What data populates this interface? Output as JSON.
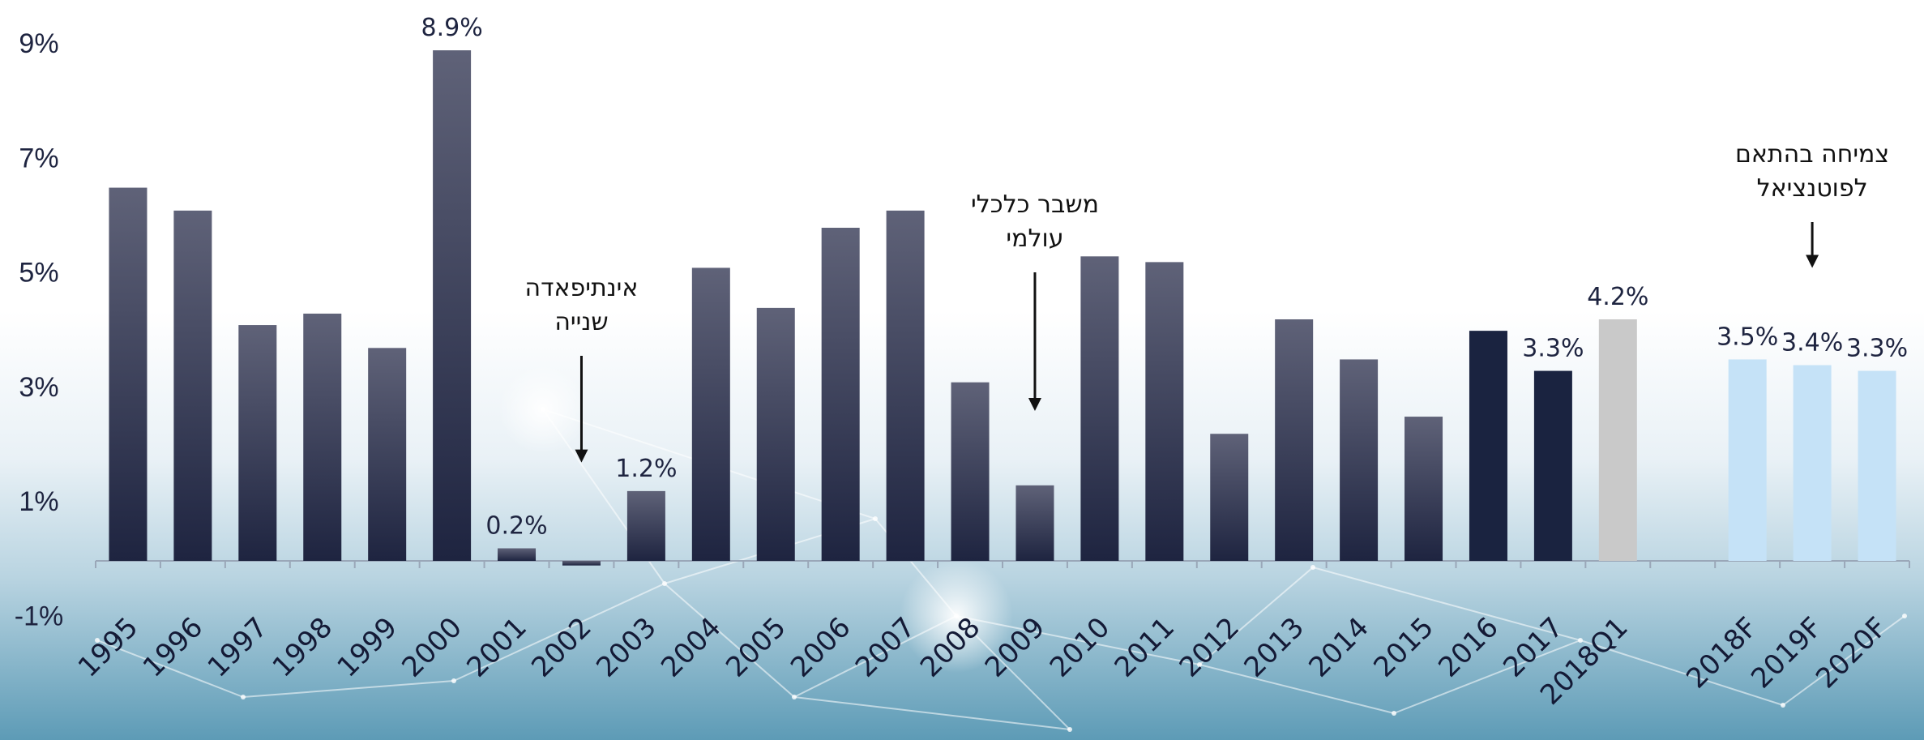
{
  "chart_data": {
    "type": "bar",
    "categories": [
      "1995",
      "1996",
      "1997",
      "1998",
      "1999",
      "2000",
      "2001",
      "2002",
      "2003",
      "2004",
      "2005",
      "2006",
      "2007",
      "2008",
      "2009",
      "2010",
      "2011",
      "2012",
      "2013",
      "2014",
      "2015",
      "2016",
      "2017",
      "2018Q1",
      "",
      "2018F",
      "2019F",
      "2020F"
    ],
    "values": [
      6.5,
      6.1,
      4.1,
      4.3,
      3.7,
      8.9,
      0.2,
      -0.1,
      1.2,
      5.1,
      4.4,
      5.8,
      6.1,
      3.1,
      1.3,
      5.3,
      5.2,
      2.2,
      4.2,
      3.5,
      2.5,
      4.0,
      3.3,
      4.2,
      null,
      3.5,
      3.4,
      3.3
    ],
    "data_labels": [
      "",
      "",
      "",
      "",
      "",
      "8.9%",
      "0.2%",
      "",
      "1.2%",
      "",
      "",
      "",
      "",
      "",
      "",
      "",
      "",
      "",
      "",
      "",
      "",
      "",
      "3.3%",
      "4.2%",
      "",
      "3.5%",
      "3.4%",
      "3.3%"
    ],
    "bar_colors": [
      "#5c5f74",
      "#5c5f74",
      "#5c5f74",
      "#5c5f74",
      "#5c5f74",
      "#5c5f74",
      "#5c5f74",
      "#5c5f74",
      "#5c5f74",
      "#5c5f74",
      "#5c5f74",
      "#5c5f74",
      "#5c5f74",
      "#5c5f74",
      "#5c5f74",
      "#5c5f74",
      "#5c5f74",
      "#5c5f74",
      "#5c5f74",
      "#5c5f74",
      "#5c5f74",
      "#1a2340",
      "#1a2340",
      "#c9c9c9",
      "",
      "#c5e2f7",
      "#c5e2f7",
      "#c5e2f7"
    ],
    "title": "",
    "xlabel": "",
    "ylabel": "",
    "ylim": [
      -1,
      9
    ],
    "yticks": [
      "9%",
      "7%",
      "5%",
      "3%",
      "1%",
      "-1%"
    ],
    "ytick_values": [
      9,
      7,
      5,
      3,
      1,
      -1
    ],
    "grid": false,
    "annotations": [
      {
        "lines": [
          "אינתיפאדה",
          "שנייה"
        ],
        "category_index": 7,
        "arrow_to_value": 1.7
      },
      {
        "lines": [
          "משבר כלכלי",
          "עולמי"
        ],
        "category_index": 14,
        "arrow_to_value": 2.6
      },
      {
        "lines": [
          "צמיחה בהתאם",
          "לפוטנציאל"
        ],
        "category_index": 26,
        "arrow_to_value": 5.1
      }
    ]
  }
}
